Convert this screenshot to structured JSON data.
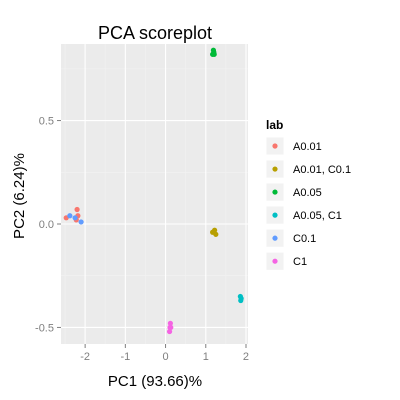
{
  "chart_data": {
    "type": "scatter",
    "title": "PCA scoreplot",
    "xlabel": "PC1 (93.66)%",
    "ylabel": "PC2 (6.24)%",
    "xlim": [
      -2.6,
      2.05
    ],
    "ylim": [
      -0.58,
      0.87
    ],
    "x_ticks": [
      -2,
      -1,
      0,
      1,
      2
    ],
    "x_tick_labels": [
      "-2",
      "-1",
      "0",
      "1",
      "2"
    ],
    "y_ticks": [
      -0.5,
      0.0,
      0.5
    ],
    "y_tick_labels": [
      "-0.5",
      "0.0",
      "0.5"
    ],
    "grid": true,
    "legend": {
      "title": "lab",
      "placement": "right"
    },
    "series": [
      {
        "name": "A0.01",
        "color": "#F8766D",
        "points": [
          [
            -2.47,
            0.03
          ],
          [
            -2.2,
            0.07
          ],
          [
            -2.18,
            0.04
          ],
          [
            -2.22,
            0.02
          ]
        ]
      },
      {
        "name": "A0.01, C0.1",
        "color": "#B79F00",
        "points": [
          [
            1.17,
            -0.04
          ],
          [
            1.25,
            -0.05
          ],
          [
            1.22,
            -0.03
          ]
        ]
      },
      {
        "name": "A0.05",
        "color": "#00BA38",
        "points": [
          [
            1.19,
            0.84
          ],
          [
            1.17,
            0.82
          ],
          [
            1.21,
            0.82
          ],
          [
            1.2,
            0.83
          ]
        ]
      },
      {
        "name": "A0.05, C1",
        "color": "#00BFC4",
        "points": [
          [
            1.86,
            -0.35
          ],
          [
            1.88,
            -0.36
          ],
          [
            1.87,
            -0.37
          ]
        ]
      },
      {
        "name": "C0.1",
        "color": "#619CFF",
        "points": [
          [
            -2.1,
            0.01
          ],
          [
            -2.25,
            0.03
          ],
          [
            -2.38,
            0.04
          ]
        ]
      },
      {
        "name": "C1",
        "color": "#F564E3",
        "points": [
          [
            0.12,
            -0.48
          ],
          [
            0.13,
            -0.5
          ],
          [
            0.1,
            -0.52
          ],
          [
            0.11,
            -0.5
          ]
        ]
      }
    ]
  }
}
